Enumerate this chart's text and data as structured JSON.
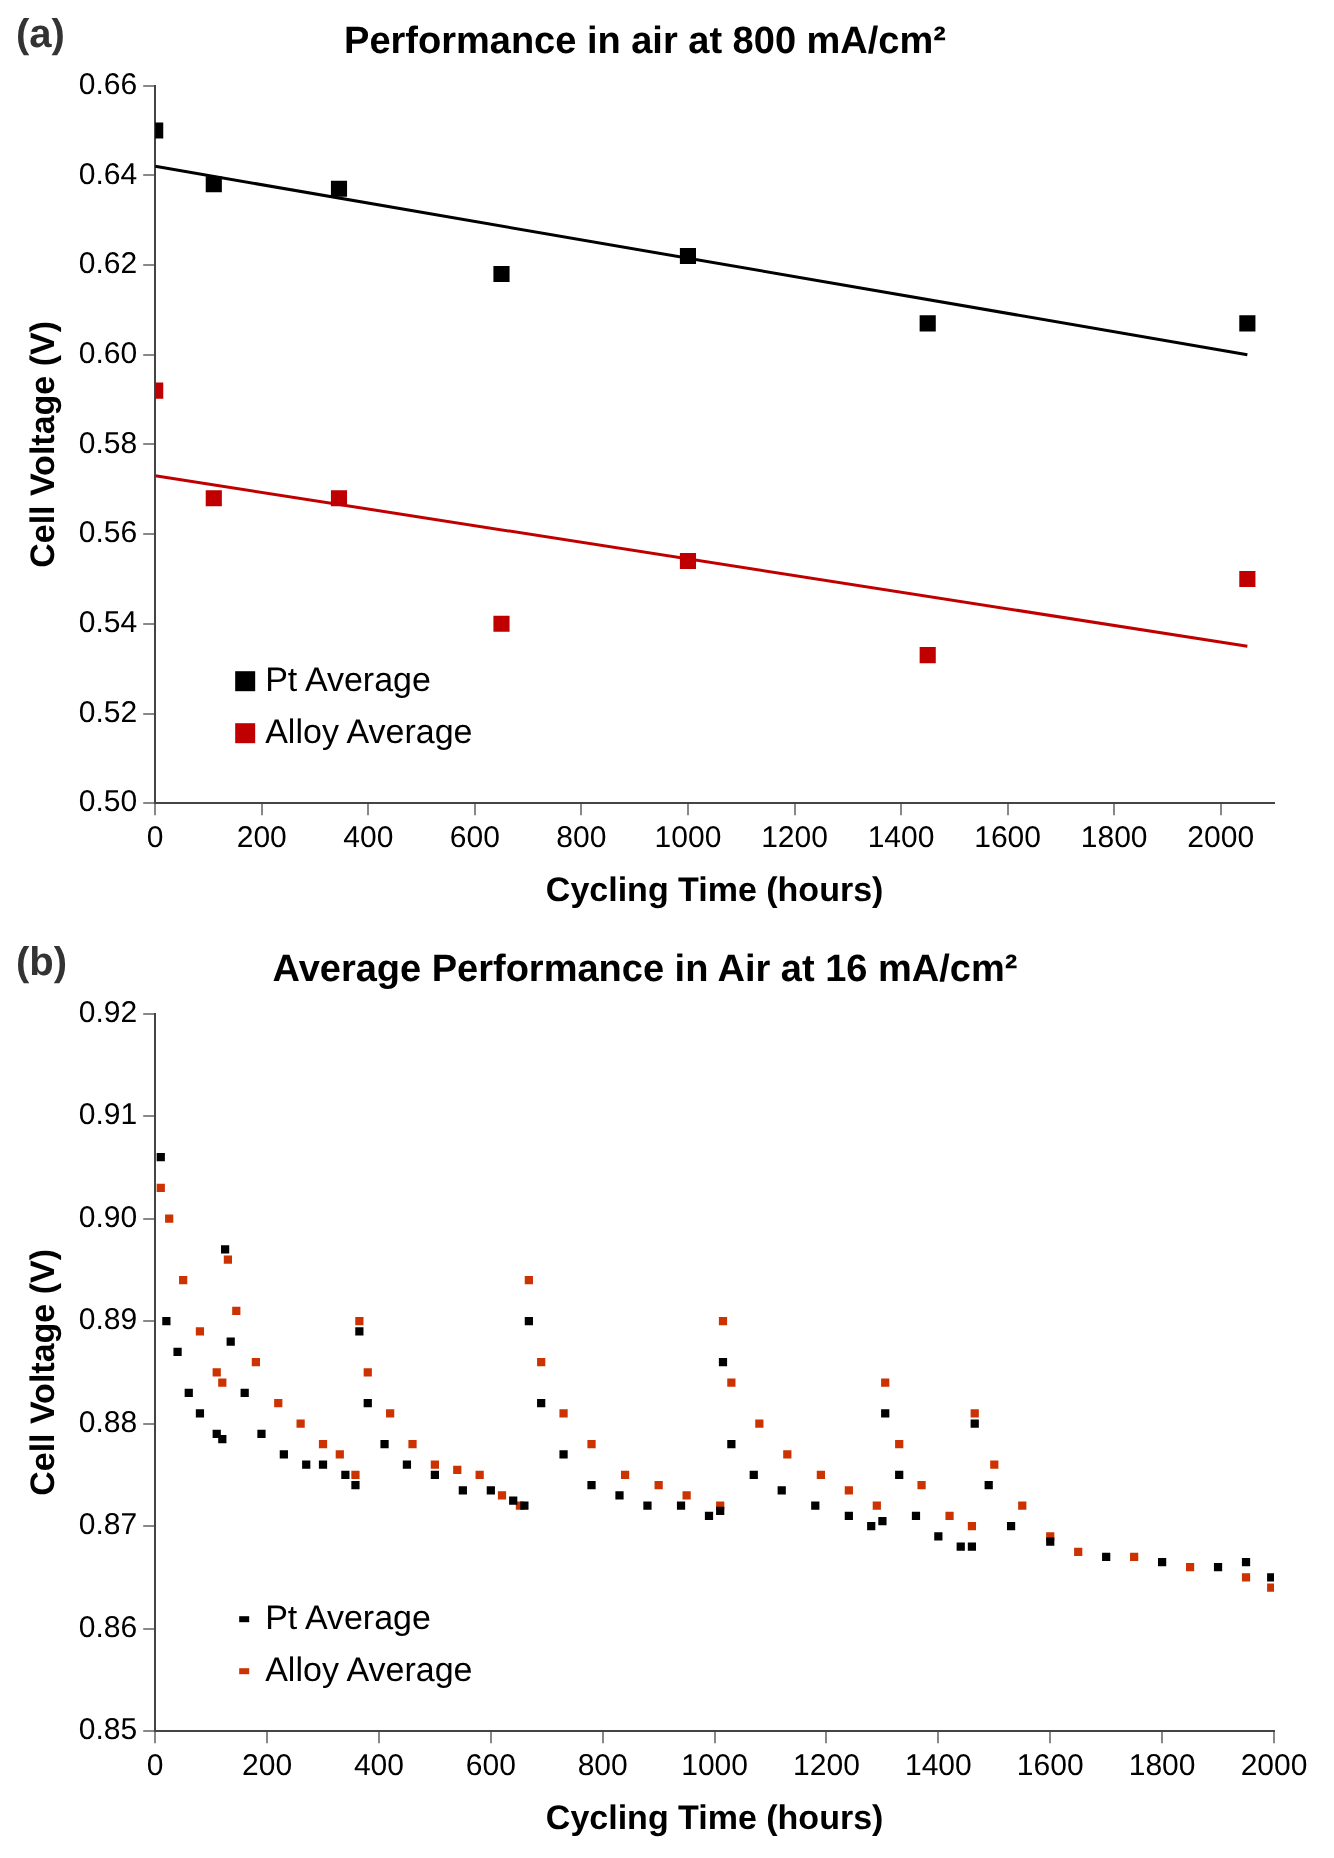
{
  "chart_data": [
    {
      "type": "scatter",
      "title": "Performance in air at 800 mA/cm²",
      "xlabel": "Cycling Time (hours)",
      "ylabel": "Cell Voltage (V)",
      "annotations": [
        "(a)"
      ],
      "xlim": [
        0,
        2100
      ],
      "xticks": [
        0,
        200,
        400,
        600,
        800,
        1000,
        1200,
        1400,
        1600,
        1800,
        2000
      ],
      "ylim": [
        0.5,
        0.66
      ],
      "yticks": [
        {
          "value": 0.5,
          "label": "0.50"
        },
        0.52,
        0.54,
        0.56,
        0.58,
        {
          "value": 0.6,
          "label": "0.60"
        },
        0.62,
        0.64,
        0.66
      ],
      "grid": false,
      "legend": "bottom left",
      "marker": "square",
      "series": [
        {
          "name": "Pt Average",
          "color": "#000000",
          "x": [
            0,
            110,
            345,
            650,
            1000,
            1450,
            2050
          ],
          "values": [
            0.65,
            0.638,
            0.637,
            0.618,
            0.622,
            0.607,
            0.607
          ]
        },
        {
          "name": "Alloy Average",
          "color": "#c00000",
          "x": [
            0,
            110,
            345,
            650,
            1000,
            1450,
            2050
          ],
          "values": [
            0.592,
            0.568,
            0.568,
            0.54,
            0.554,
            0.533,
            0.55
          ]
        },
        {
          "type": "line",
          "marker": "none",
          "color": "#000000",
          "x": [
            0,
            2050
          ],
          "values": [
            0.642,
            0.6
          ]
        },
        {
          "type": "line",
          "marker": "none",
          "color": "#c00000",
          "x": [
            0,
            2050
          ],
          "values": [
            0.573,
            0.535
          ]
        }
      ]
    },
    {
      "type": "scatter",
      "title": "Average Performance in Air at 16 mA/cm²",
      "xlabel": "Cycling Time (hours)",
      "ylabel": "Cell Voltage (V)",
      "annotations": [
        "(b)"
      ],
      "xlim": [
        0,
        2000
      ],
      "xticks": [
        0,
        200,
        400,
        600,
        800,
        1000,
        1200,
        1400,
        1600,
        1800,
        2000
      ],
      "ylim": [
        0.85,
        0.92
      ],
      "yticks": [
        0.85,
        0.86,
        0.87,
        0.88,
        0.89,
        {
          "value": 0.9,
          "label": "0.90"
        },
        0.91,
        0.92
      ],
      "grid": false,
      "legend": "bottom left",
      "marker": "square",
      "series": [
        {
          "name": "Pt Average",
          "color": "#000000",
          "x": [
            10,
            20,
            40,
            60,
            80,
            110,
            120,
            125,
            135,
            160,
            190,
            230,
            270,
            300,
            340,
            358,
            365,
            380,
            410,
            450,
            500,
            550,
            600,
            640,
            660,
            668,
            690,
            730,
            780,
            830,
            880,
            940,
            990,
            1010,
            1015,
            1030,
            1070,
            1120,
            1180,
            1240,
            1280,
            1300,
            1305,
            1330,
            1360,
            1400,
            1440,
            1460,
            1465,
            1490,
            1530,
            1600,
            1700,
            1800,
            1900,
            1950,
            1995
          ],
          "values": [
            0.906,
            0.89,
            0.887,
            0.883,
            0.881,
            0.879,
            0.8785,
            0.897,
            0.888,
            0.883,
            0.879,
            0.877,
            0.876,
            0.876,
            0.875,
            0.874,
            0.889,
            0.882,
            0.878,
            0.876,
            0.875,
            0.8735,
            0.8735,
            0.8725,
            0.872,
            0.89,
            0.882,
            0.877,
            0.874,
            0.873,
            0.872,
            0.872,
            0.871,
            0.8715,
            0.886,
            0.878,
            0.875,
            0.8735,
            0.872,
            0.871,
            0.87,
            0.8705,
            0.881,
            0.875,
            0.871,
            0.869,
            0.868,
            0.868,
            0.88,
            0.874,
            0.87,
            0.8685,
            0.867,
            0.8665,
            0.866,
            0.8665,
            0.865
          ]
        },
        {
          "name": "Alloy Average",
          "color": "#cc3300",
          "x": [
            10,
            25,
            50,
            80,
            110,
            120,
            130,
            145,
            180,
            220,
            260,
            300,
            330,
            358,
            365,
            380,
            420,
            460,
            500,
            540,
            580,
            620,
            652,
            668,
            690,
            730,
            780,
            840,
            900,
            950,
            1010,
            1015,
            1030,
            1080,
            1130,
            1190,
            1240,
            1290,
            1305,
            1330,
            1370,
            1420,
            1460,
            1465,
            1500,
            1550,
            1600,
            1650,
            1750,
            1850,
            1950,
            1995
          ],
          "values": [
            0.903,
            0.9,
            0.894,
            0.889,
            0.885,
            0.884,
            0.896,
            0.891,
            0.886,
            0.882,
            0.88,
            0.878,
            0.877,
            0.875,
            0.89,
            0.885,
            0.881,
            0.878,
            0.876,
            0.8755,
            0.875,
            0.873,
            0.872,
            0.894,
            0.886,
            0.881,
            0.878,
            0.875,
            0.874,
            0.873,
            0.872,
            0.89,
            0.884,
            0.88,
            0.877,
            0.875,
            0.8735,
            0.872,
            0.884,
            0.878,
            0.874,
            0.871,
            0.87,
            0.881,
            0.876,
            0.872,
            0.869,
            0.8675,
            0.867,
            0.866,
            0.865,
            0.864
          ]
        }
      ]
    }
  ]
}
